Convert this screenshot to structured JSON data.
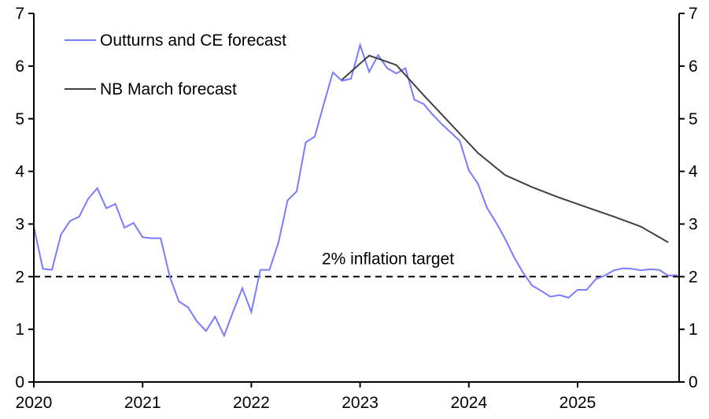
{
  "chart_data": {
    "type": "line",
    "title": "",
    "xlabel": "",
    "ylabel": "",
    "ylim": [
      0,
      7
    ],
    "yticks": [
      "0",
      "1",
      "2",
      "3",
      "4",
      "5",
      "6",
      "7"
    ],
    "xticks": [
      "2020",
      "2021",
      "2022",
      "2023",
      "2024",
      "2025"
    ],
    "x_start": "2020-01",
    "frequency": "monthly",
    "legend_position": "top-left",
    "target": {
      "value": 2,
      "label": "2% inflation target"
    },
    "colors": {
      "outturns": "#7B7BFF",
      "nb": "#404040",
      "target": "#000000"
    },
    "series": [
      {
        "name": "Outturns and CE forecast",
        "month_index": [
          0,
          1,
          2,
          3,
          4,
          5,
          6,
          7,
          8,
          9,
          10,
          11,
          12,
          13,
          14,
          15,
          16,
          17,
          18,
          19,
          20,
          21,
          22,
          23,
          24,
          25,
          26,
          27,
          28,
          29,
          30,
          31,
          32,
          33,
          34,
          35,
          36,
          37,
          38,
          39,
          40,
          41,
          42,
          43,
          44,
          45,
          46,
          47,
          48,
          49,
          50,
          51,
          52,
          53,
          54,
          55,
          56,
          57,
          58,
          59,
          60,
          61,
          62,
          63,
          64,
          65,
          66,
          67,
          68,
          69,
          70,
          71
        ],
        "values": [
          2.95,
          2.15,
          2.13,
          2.8,
          3.06,
          3.14,
          3.48,
          3.68,
          3.3,
          3.38,
          2.93,
          3.02,
          2.75,
          2.73,
          2.73,
          2.0,
          1.53,
          1.42,
          1.15,
          0.97,
          1.24,
          0.88,
          1.34,
          1.78,
          1.33,
          2.13,
          2.13,
          2.65,
          3.45,
          3.62,
          4.55,
          4.66,
          5.28,
          5.88,
          5.72,
          5.76,
          6.4,
          5.89,
          6.21,
          5.96,
          5.86,
          5.96,
          5.36,
          5.28,
          5.08,
          4.9,
          4.74,
          4.58,
          4.02,
          3.77,
          3.31,
          3.03,
          2.72,
          2.37,
          2.07,
          1.83,
          1.73,
          1.62,
          1.65,
          1.6,
          1.75,
          1.75,
          1.95,
          2.02,
          2.12,
          2.16,
          2.15,
          2.12,
          2.14,
          2.13,
          2.02,
          2.03
        ]
      },
      {
        "name": "NB March forecast",
        "month_index": [
          34,
          37,
          40,
          43,
          46,
          49,
          52,
          55,
          58,
          61,
          64,
          67,
          70
        ],
        "values": [
          5.74,
          6.2,
          6.02,
          5.45,
          4.9,
          4.35,
          3.93,
          3.7,
          3.5,
          3.32,
          3.14,
          2.95,
          2.65
        ]
      }
    ]
  }
}
